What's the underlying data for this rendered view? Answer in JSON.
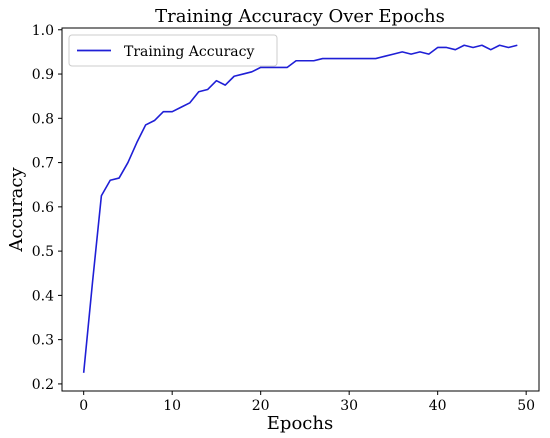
{
  "chart_data": {
    "type": "line",
    "title": "Training Accuracy Over Epochs",
    "xlabel": "Epochs",
    "ylabel": "Accuracy",
    "xlim": [
      -2.45,
      51.45
    ],
    "ylim": [
      0.184,
      1.004
    ],
    "xticks": [
      0,
      10,
      20,
      30,
      40,
      50
    ],
    "yticks": [
      0.2,
      0.3,
      0.4,
      0.5,
      0.6,
      0.7,
      0.8,
      0.9,
      1.0
    ],
    "ytick_labels": [
      "0.2",
      "0.3",
      "0.4",
      "0.5",
      "0.6",
      "0.7",
      "0.8",
      "0.9",
      "1.0"
    ],
    "grid": false,
    "legend_position": "upper-left",
    "series": [
      {
        "name": "Training Accuracy",
        "color": "#1f1fd6",
        "x": [
          0,
          1,
          2,
          3,
          4,
          5,
          6,
          7,
          8,
          9,
          10,
          11,
          12,
          13,
          14,
          15,
          16,
          17,
          18,
          19,
          20,
          21,
          22,
          23,
          24,
          25,
          26,
          27,
          28,
          29,
          30,
          31,
          32,
          33,
          34,
          35,
          36,
          37,
          38,
          39,
          40,
          41,
          42,
          43,
          44,
          45,
          46,
          47,
          48,
          49
        ],
        "values": [
          0.225,
          0.43,
          0.625,
          0.66,
          0.665,
          0.7,
          0.745,
          0.785,
          0.795,
          0.815,
          0.815,
          0.825,
          0.835,
          0.86,
          0.865,
          0.885,
          0.875,
          0.895,
          0.9,
          0.905,
          0.915,
          0.915,
          0.915,
          0.915,
          0.93,
          0.93,
          0.93,
          0.935,
          0.935,
          0.935,
          0.935,
          0.935,
          0.935,
          0.935,
          0.94,
          0.945,
          0.95,
          0.945,
          0.95,
          0.945,
          0.96,
          0.96,
          0.955,
          0.965,
          0.96,
          0.965,
          0.955,
          0.965,
          0.96,
          0.965
        ]
      }
    ]
  }
}
